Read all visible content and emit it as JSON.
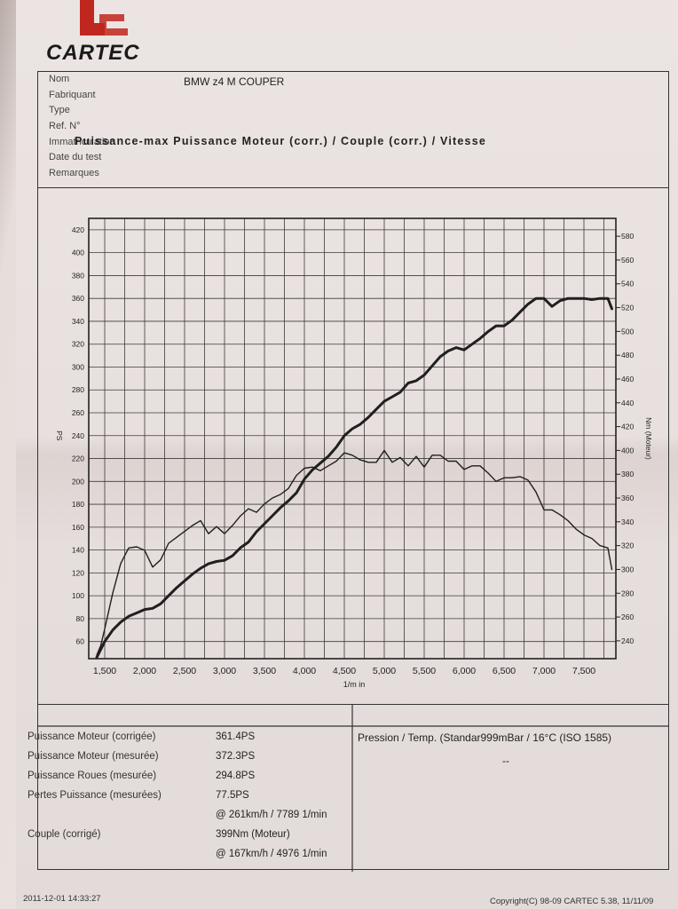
{
  "header": {
    "logo_text": "CARTEC",
    "fields": [
      {
        "label": "Nom",
        "value": "BMW z4 M COUPER"
      },
      {
        "label": "Fabriquant",
        "value": ""
      },
      {
        "label": "Type",
        "value": ""
      },
      {
        "label": "Ref. N°",
        "value": ""
      },
      {
        "label": "Immatriculation",
        "value": ""
      },
      {
        "label": "Date du test",
        "value": ""
      },
      {
        "label": "Remarques",
        "value": ""
      }
    ]
  },
  "chart_data": {
    "type": "line",
    "title": "Puissance-max Puissance Moteur (corr.) / Couple (corr.) / Vitesse",
    "xlabel": "1/m in",
    "ylabel_left": "PS",
    "ylabel_right": "Nm (Moteur)",
    "xlim": [
      1300,
      7900
    ],
    "ylim_left": [
      45,
      430
    ],
    "ylim_right": [
      225,
      595
    ],
    "x_ticks": [
      "1,500",
      "2,000",
      "2,500",
      "3,000",
      "3,500",
      "4,000",
      "4,500",
      "5,000",
      "5,500",
      "6,000",
      "6,500",
      "7,000",
      "7,500"
    ],
    "y_left_ticks": [
      60,
      80,
      100,
      120,
      140,
      160,
      180,
      200,
      220,
      240,
      260,
      280,
      300,
      320,
      340,
      360,
      380,
      400,
      420
    ],
    "y_right_ticks": [
      240,
      260,
      280,
      300,
      320,
      340,
      360,
      380,
      400,
      420,
      440,
      460,
      480,
      500,
      520,
      540,
      560,
      580
    ],
    "grid": true,
    "series": [
      {
        "name": "",
        "axis": "left",
        "x": [
          1400,
          1500,
          1600,
          1700,
          1800,
          1900,
          2000,
          2100,
          2200,
          2300,
          2400,
          2500,
          2600,
          2700,
          2800,
          2900,
          3000,
          3100,
          3200,
          3300,
          3400,
          3500,
          3600,
          3700,
          3800,
          3900,
          4000,
          4100,
          4200,
          4300,
          4400,
          4500,
          4600,
          4700,
          4800,
          4900,
          5000,
          5100,
          5200,
          5300,
          5400,
          5500,
          5600,
          5700,
          5800,
          5900,
          6000,
          6100,
          6200,
          6300,
          6400,
          6500,
          6600,
          6700,
          6800,
          6900,
          7000,
          7100,
          7200,
          7300,
          7400,
          7500,
          7600,
          7700,
          7800,
          7850
        ],
        "y": [
          46,
          60,
          70,
          77,
          82,
          85,
          88,
          89,
          93,
          100,
          107,
          113,
          119,
          124,
          128,
          130,
          131,
          135,
          142,
          147,
          156,
          163,
          170,
          177,
          183,
          190,
          202,
          210,
          216,
          222,
          230,
          240,
          246,
          250,
          256,
          263,
          270,
          274,
          278,
          286,
          288,
          293,
          301,
          309,
          314,
          317,
          315,
          320,
          325,
          331,
          336,
          336,
          341,
          348,
          355,
          360,
          360,
          353,
          358,
          360,
          360,
          360,
          359,
          360,
          360,
          351
        ]
      },
      {
        "name": "",
        "axis": "right",
        "x": [
          1400,
          1450,
          1500,
          1600,
          1700,
          1800,
          1900,
          2000,
          2100,
          2200,
          2300,
          2400,
          2500,
          2600,
          2700,
          2800,
          2900,
          3000,
          3100,
          3200,
          3300,
          3400,
          3500,
          3600,
          3700,
          3800,
          3900,
          4000,
          4100,
          4200,
          4300,
          4400,
          4500,
          4600,
          4700,
          4800,
          4900,
          5000,
          5100,
          5200,
          5300,
          5400,
          5500,
          5600,
          5700,
          5800,
          5900,
          6000,
          6100,
          6200,
          6300,
          6400,
          6500,
          6600,
          6700,
          6800,
          6900,
          7000,
          7100,
          7200,
          7300,
          7400,
          7500,
          7600,
          7700,
          7800,
          7850
        ],
        "y": [
          228,
          236,
          250,
          280,
          305,
          318,
          319,
          316,
          302,
          308,
          322,
          327,
          332,
          337,
          341,
          330,
          336,
          330,
          337,
          345,
          351,
          348,
          355,
          360,
          363,
          368,
          379,
          385,
          386,
          383,
          387,
          391,
          398,
          396,
          392,
          390,
          390,
          400,
          390,
          394,
          387,
          395,
          386,
          396,
          396,
          391,
          391,
          384,
          387,
          387,
          381,
          374,
          377,
          377,
          378,
          375,
          365,
          350,
          350,
          346,
          341,
          334,
          329,
          326,
          320,
          318,
          300
        ]
      }
    ]
  },
  "results": [
    {
      "label": "Puissance Moteur (corrigée)",
      "value": "361.4PS"
    },
    {
      "label": "Puissance Moteur (mesurée)",
      "value": "372.3PS"
    },
    {
      "label": "Puissance Roues (mesurée)",
      "value": "294.8PS"
    },
    {
      "label": "Pertes Puissance (mesurées)",
      "value": "77.5PS"
    },
    {
      "label": "",
      "value": "@ 261km/h / 7789 1/min"
    },
    {
      "label": "Couple (corrigé)",
      "value": "399Nm (Moteur)"
    },
    {
      "label": "",
      "value": "@ 167km/h / 4976 1/min"
    }
  ],
  "conditions": {
    "pressure": "Pression / Temp. (Standar999mBar / 16°C   (ISO 1585)",
    "dash": "--"
  },
  "footer": {
    "left": "2011-12-01 14:33:27",
    "right": "Copyright(C) 98-09 CARTEC 5.38, 11/11/09"
  },
  "colors": {
    "logo_red": "#c0271e",
    "ink": "#1f1f1f"
  }
}
